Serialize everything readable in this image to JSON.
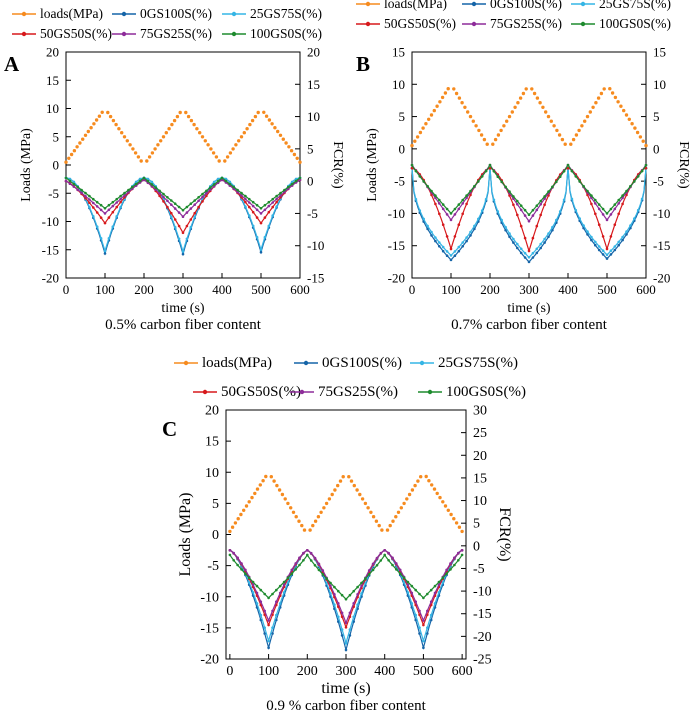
{
  "figure": {
    "legend_labels": [
      "loads(MPa)",
      "0GS100S(%)",
      "25GS75S(%)",
      "50GS50S(%)",
      "75GS25S(%)",
      "100GS0S(%)"
    ],
    "series_colors": {
      "loads": "#F68B1F",
      "0GS100S": "#1565A8",
      "25GS75S": "#35B5E5",
      "50GS50S": "#D7191C",
      "75GS25S": "#8E2C9A",
      "100GS0S": "#1E8B2E"
    }
  },
  "chart_data": [
    {
      "panel": "A",
      "type": "line",
      "caption": "0.5% carbon fiber content",
      "xlabel": "time (s)",
      "ylabel": "Loads (MPa)",
      "y2label": "FCR(%)",
      "xlim": [
        0,
        600
      ],
      "ylim": [
        -20,
        20
      ],
      "y2lim": [
        -15,
        20
      ],
      "xticks": [
        0,
        100,
        200,
        300,
        400,
        500,
        600
      ],
      "yticks": [
        -20,
        -15,
        -10,
        -5,
        0,
        5,
        10,
        15,
        20
      ],
      "y2ticks": [
        -15,
        -10,
        -5,
        0,
        5,
        10,
        15,
        20
      ],
      "loads": {
        "name": "loads(MPa)",
        "axis": "left",
        "x": [
          0,
          100,
          200,
          300,
          400,
          500,
          600
        ],
        "y": [
          0.5,
          10,
          0,
          10,
          0,
          10,
          0.5
        ]
      },
      "series": [
        {
          "name": "0GS100S(%)",
          "axis": "right",
          "peaks": [
            0.5,
            0.5,
            0.5,
            0.5
          ],
          "troughs": [
            -11.2,
            -11.3,
            -11.0
          ],
          "shape": 1.8
        },
        {
          "name": "25GS75S(%)",
          "axis": "right",
          "peaks": [
            0.5,
            0.5,
            0.5,
            0.5
          ],
          "troughs": [
            -10.8,
            -10.9,
            -10.6
          ],
          "shape": 1.8
        },
        {
          "name": "50GS50S(%)",
          "axis": "right",
          "peaks": [
            0,
            0.2,
            0.2,
            0.2
          ],
          "troughs": [
            -6.5,
            -8.0,
            -6.5
          ],
          "shape": 1.3
        },
        {
          "name": "75GS25S(%)",
          "axis": "right",
          "peaks": [
            0,
            0.2,
            0.2,
            0.2
          ],
          "troughs": [
            -5.0,
            -5.5,
            -5.0
          ],
          "shape": 1.1
        },
        {
          "name": "100GS0S(%)",
          "axis": "right",
          "peaks": [
            0.5,
            0.5,
            0.5,
            0.5
          ],
          "troughs": [
            -4.2,
            -4.5,
            -4.2
          ],
          "shape": 1.0
        }
      ]
    },
    {
      "panel": "B",
      "type": "line",
      "caption": "0.7% carbon fiber content",
      "xlabel": "time (s)",
      "ylabel": "Loads (MPa)",
      "y2label": "FCR(%)",
      "xlim": [
        0,
        600
      ],
      "ylim": [
        -20,
        15
      ],
      "y2lim": [
        -20,
        15
      ],
      "xticks": [
        0,
        100,
        200,
        300,
        400,
        500,
        600
      ],
      "yticks": [
        -20,
        -15,
        -10,
        -5,
        0,
        5,
        10,
        15
      ],
      "y2ticks": [
        -20,
        -15,
        -10,
        -5,
        0,
        5,
        10,
        15
      ],
      "loads": {
        "name": "loads(MPa)",
        "axis": "left",
        "x": [
          0,
          100,
          200,
          300,
          400,
          500,
          600
        ],
        "y": [
          0.5,
          10,
          0,
          10,
          0,
          10,
          0.5
        ]
      },
      "series": [
        {
          "name": "0GS100S(%)",
          "axis": "right",
          "peaks": [
            -3,
            -3,
            -3,
            -3
          ],
          "troughs": [
            -17.2,
            -17.5,
            -17.0
          ],
          "shape": 0.45
        },
        {
          "name": "25GS75S(%)",
          "axis": "right",
          "peaks": [
            -3,
            -3,
            -3,
            -3
          ],
          "troughs": [
            -16.5,
            -16.8,
            -16.4
          ],
          "shape": 0.45
        },
        {
          "name": "50GS50S(%)",
          "axis": "right",
          "peaks": [
            -3,
            -3,
            -3,
            -3
          ],
          "troughs": [
            -15.5,
            -15.8,
            -15.5
          ],
          "shape": 1.6
        },
        {
          "name": "75GS25S(%)",
          "axis": "right",
          "peaks": [
            -2.5,
            -2.5,
            -2.5,
            -2.5
          ],
          "troughs": [
            -11.0,
            -11.2,
            -11.0
          ],
          "shape": 1.0
        },
        {
          "name": "100GS0S(%)",
          "axis": "right",
          "peaks": [
            -2.5,
            -2.5,
            -2.5,
            -2.5
          ],
          "troughs": [
            -10.0,
            -10.2,
            -10.0
          ],
          "shape": 0.9
        }
      ]
    },
    {
      "panel": "C",
      "type": "line",
      "caption": "0.9 % carbon fiber content",
      "xlabel": "time (s)",
      "ylabel": "Loads (MPa)",
      "y2label": "FCR(%)",
      "xlim": [
        -10,
        610
      ],
      "ylim": [
        -20,
        20
      ],
      "y2lim": [
        -25,
        30
      ],
      "xticks": [
        0,
        100,
        200,
        300,
        400,
        500,
        600
      ],
      "yticks": [
        -20,
        -15,
        -10,
        -5,
        0,
        5,
        10,
        15,
        20
      ],
      "y2ticks": [
        -25,
        -20,
        -15,
        -10,
        -5,
        0,
        5,
        10,
        15,
        20,
        25,
        30
      ],
      "loads": {
        "name": "loads(MPa)",
        "axis": "left",
        "x": [
          0,
          100,
          200,
          300,
          400,
          500,
          600
        ],
        "y": [
          0.5,
          10,
          0,
          10,
          0,
          10,
          0.5
        ]
      },
      "series": [
        {
          "name": "0GS100S(%)",
          "axis": "right",
          "peaks": [
            -1,
            -1,
            -1,
            -1
          ],
          "troughs": [
            -22.5,
            -23.0,
            -22.5
          ],
          "shape": 1.5
        },
        {
          "name": "25GS75S(%)",
          "axis": "right",
          "peaks": [
            -1,
            -1,
            -1,
            -1
          ],
          "troughs": [
            -21.0,
            -21.5,
            -21.0
          ],
          "shape": 1.5
        },
        {
          "name": "50GS50S(%)",
          "axis": "right",
          "peaks": [
            -1,
            -1,
            -1,
            -1
          ],
          "troughs": [
            -17.5,
            -18.0,
            -17.5
          ],
          "shape": 1.4
        },
        {
          "name": "75GS25S(%)",
          "axis": "right",
          "peaks": [
            -1,
            -1,
            -1,
            -1
          ],
          "troughs": [
            -16.5,
            -17.0,
            -16.5
          ],
          "shape": 1.4
        },
        {
          "name": "100GS0S(%)",
          "axis": "right",
          "peaks": [
            -2,
            -2,
            -2,
            -2
          ],
          "troughs": [
            -11.5,
            -11.8,
            -11.5
          ],
          "shape": 0.9
        }
      ]
    }
  ]
}
